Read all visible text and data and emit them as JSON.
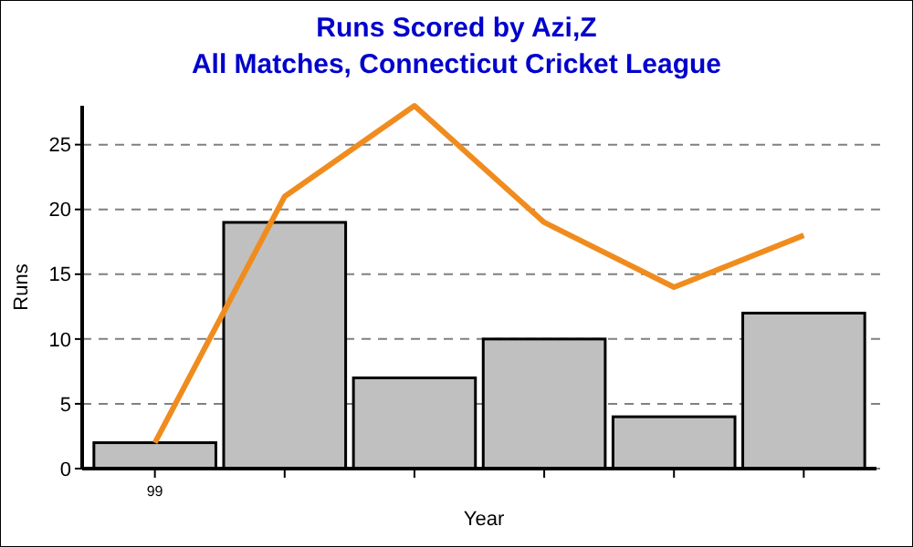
{
  "chart_data": {
    "type": "bar",
    "title": "Runs Scored by Azi,Z",
    "subtitle": "All Matches, Connecticut Cricket League",
    "xlabel": "Year",
    "ylabel": "Runs",
    "categories": [
      "99",
      null,
      null,
      null,
      null,
      null
    ],
    "series": [
      {
        "color": "#c0c0c0",
        "values": [
          2,
          19,
          7,
          10,
          4,
          12
        ]
      },
      {
        "type": "line",
        "color": "#f08c1e",
        "values": [
          2,
          21,
          28,
          19,
          14,
          18
        ]
      }
    ],
    "ylim": [
      0,
      28
    ],
    "yticks": [
      0,
      5,
      10,
      15,
      20,
      25
    ],
    "grid": "y",
    "marker": "none",
    "line_style": "solid"
  }
}
